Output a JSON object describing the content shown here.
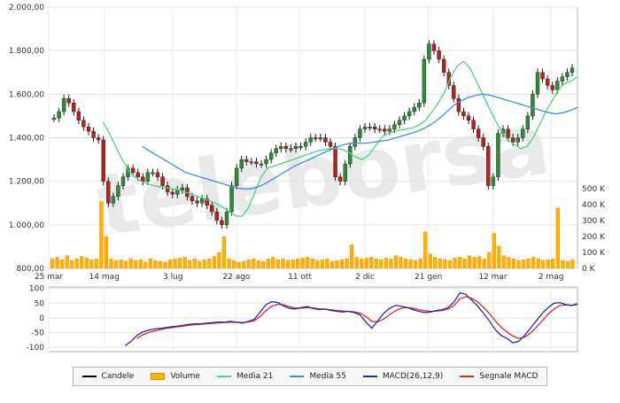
{
  "chart_data": [
    {
      "type": "line",
      "panel": "price",
      "y_ticks": [
        "2.000,00",
        "1.800,00",
        "1.600,00",
        "1.400,00",
        "1.200,00",
        "1.000,00",
        "800,00"
      ],
      "ylim": [
        800,
        2000
      ],
      "x_ticks": [
        "25 mar",
        "14 mag",
        "3 lug",
        "22 ago",
        "11 ott",
        "2 dic",
        "21 gen",
        "12 mar",
        "2 mag"
      ],
      "grid": true,
      "series": [
        {
          "name": "Candele",
          "color": "#2e7d32",
          "values": [
            1490,
            1520,
            1580,
            1560,
            1520,
            1480,
            1450,
            1430,
            1400,
            1390,
            1200,
            1100,
            1130,
            1180,
            1220,
            1260,
            1240,
            1220,
            1200,
            1240,
            1240,
            1220,
            1180,
            1150,
            1140,
            1160,
            1170,
            1130,
            1110,
            1100,
            1120,
            1090,
            1060,
            1020,
            1000,
            1060,
            1180,
            1260,
            1300,
            1290,
            1290,
            1280,
            1280,
            1300,
            1330,
            1350,
            1360,
            1350,
            1350,
            1360,
            1360,
            1380,
            1400,
            1400,
            1400,
            1380,
            1360,
            1220,
            1200,
            1280,
            1360,
            1400,
            1440,
            1450,
            1450,
            1440,
            1440,
            1430,
            1440,
            1460,
            1480,
            1500,
            1520,
            1540,
            1560,
            1760,
            1830,
            1800,
            1760,
            1700,
            1640,
            1580,
            1520,
            1500,
            1480,
            1440,
            1400,
            1360,
            1180,
            1220,
            1420,
            1440,
            1400,
            1380,
            1400,
            1440,
            1500,
            1600,
            1700,
            1670,
            1640,
            1620,
            1660,
            1680,
            1700,
            1720
          ]
        },
        {
          "name": "Media 21",
          "color": "#49d680",
          "values": [
            null,
            null,
            null,
            1470,
            1420,
            1360,
            1300,
            1250,
            1220,
            1200,
            1190,
            1180,
            1175,
            1170,
            1165,
            1160,
            1150,
            1140,
            1130,
            1120,
            1110,
            1095,
            1080,
            1060,
            1040,
            1040,
            1080,
            1150,
            1220,
            1260,
            1270,
            1280,
            1290,
            1300,
            1310,
            1320,
            1330,
            1340,
            1345,
            1350,
            1350,
            1345,
            1330,
            1310,
            1300,
            1320,
            1360,
            1400,
            1420,
            1430,
            1435,
            1440,
            1445,
            1460,
            1480,
            1520,
            1560,
            1610,
            1680,
            1730,
            1750,
            1720,
            1660,
            1600,
            1540,
            1480,
            1430,
            1390,
            1370,
            1350,
            1360,
            1400,
            1460,
            1520,
            1570,
            1620,
            1650,
            1660,
            1680
          ]
        },
        {
          "name": "Media 55",
          "color": "#3f8fd8",
          "values": [
            null,
            null,
            null,
            null,
            null,
            null,
            null,
            null,
            1360,
            1340,
            1320,
            1300,
            1280,
            1260,
            1240,
            1230,
            1220,
            1210,
            1200,
            1190,
            1180,
            1170,
            1165,
            1165,
            1175,
            1190,
            1210,
            1230,
            1250,
            1270,
            1285,
            1300,
            1315,
            1330,
            1345,
            1360,
            1370,
            1375,
            1375,
            1375,
            1380,
            1385,
            1390,
            1400,
            1410,
            1420,
            1430,
            1445,
            1465,
            1490,
            1520,
            1550,
            1570,
            1585,
            1595,
            1600,
            1595,
            1585,
            1575,
            1565,
            1555,
            1545,
            1535,
            1525,
            1515,
            1510,
            1515,
            1525,
            1540
          ]
        }
      ]
    },
    {
      "type": "bar",
      "panel": "volume",
      "y_ticks": [
        "500 K",
        "400 K",
        "300 K",
        "200 K",
        "100 K",
        "0 K"
      ],
      "ylim": [
        0,
        500
      ],
      "series": [
        {
          "name": "Volume",
          "color": "#ffb000",
          "values": [
            60,
            70,
            55,
            80,
            50,
            60,
            75,
            65,
            55,
            60,
            420,
            200,
            60,
            50,
            55,
            45,
            60,
            50,
            55,
            40,
            60,
            50,
            45,
            40,
            55,
            60,
            65,
            70,
            50,
            60,
            45,
            55,
            60,
            75,
            100,
            200,
            60,
            50,
            40,
            45,
            55,
            60,
            50,
            45,
            60,
            70,
            55,
            60,
            50,
            55,
            60,
            65,
            70,
            60,
            50,
            55,
            60,
            45,
            50,
            55,
            60,
            150,
            70,
            60,
            65,
            70,
            60,
            55,
            65,
            60,
            80,
            70,
            60,
            55,
            50,
            60,
            230,
            90,
            70,
            60,
            55,
            50,
            65,
            70,
            60,
            80,
            70,
            75,
            60,
            100,
            220,
            140,
            80,
            70,
            60,
            50,
            55,
            60,
            70,
            60,
            50,
            55,
            60,
            380,
            50,
            45,
            55
          ]
        }
      ]
    },
    {
      "type": "line",
      "panel": "macd",
      "y_ticks": [
        "100",
        "50",
        "0",
        "-50",
        "-100"
      ],
      "ylim": [
        -115,
        105
      ],
      "series": [
        {
          "name": "MACD(26,12,9)",
          "color": "#1d2fa0",
          "values": [
            null,
            null,
            null,
            null,
            null,
            null,
            null,
            null,
            null,
            null,
            null,
            null,
            null,
            -95,
            -80,
            -60,
            -48,
            -42,
            -38,
            -36,
            -33,
            -30,
            -28,
            -25,
            -22,
            -20,
            -20,
            -18,
            -16,
            -14,
            -15,
            -12,
            -15,
            -18,
            -12,
            -5,
            20,
            45,
            55,
            52,
            40,
            32,
            30,
            35,
            38,
            32,
            28,
            30,
            25,
            22,
            20,
            22,
            18,
            10,
            -15,
            -35,
            -10,
            15,
            32,
            42,
            40,
            35,
            28,
            22,
            18,
            20,
            25,
            28,
            35,
            55,
            85,
            80,
            60,
            40,
            15,
            -10,
            -40,
            -60,
            -70,
            -85,
            -80,
            -60,
            -35,
            -10,
            15,
            35,
            50,
            52,
            45,
            42,
            48
          ]
        },
        {
          "name": "Segnale MACD",
          "color": "#e0222a",
          "values": [
            null,
            null,
            null,
            null,
            null,
            null,
            null,
            null,
            null,
            null,
            null,
            null,
            null,
            null,
            null,
            -70,
            -58,
            -50,
            -45,
            -40,
            -36,
            -33,
            -30,
            -28,
            -25,
            -23,
            -22,
            -20,
            -19,
            -17,
            -16,
            -15,
            -15,
            -16,
            -14,
            -10,
            5,
            25,
            40,
            46,
            44,
            38,
            33,
            33,
            35,
            34,
            31,
            30,
            28,
            25,
            23,
            22,
            20,
            16,
            4,
            -12,
            -14,
            -4,
            10,
            24,
            33,
            35,
            32,
            28,
            24,
            22,
            23,
            25,
            30,
            42,
            65,
            72,
            66,
            54,
            36,
            15,
            -10,
            -32,
            -48,
            -62,
            -70,
            -66,
            -52,
            -32,
            -10,
            12,
            30,
            42,
            44,
            43,
            45
          ]
        }
      ]
    }
  ],
  "legend": {
    "items": [
      {
        "label": "Candele",
        "color": "#000000",
        "kind": "line"
      },
      {
        "label": "Volume",
        "color": "#ffb000",
        "kind": "box"
      },
      {
        "label": "Media 21",
        "color": "#49d680",
        "kind": "line"
      },
      {
        "label": "Media 55",
        "color": "#3f8fd8",
        "kind": "line"
      },
      {
        "label": "MACD(26,12,9)",
        "color": "#1d2fa0",
        "kind": "line"
      },
      {
        "label": "Segnale MACD",
        "color": "#e0222a",
        "kind": "line"
      }
    ]
  },
  "watermark": {
    "text": "teleborsa"
  }
}
